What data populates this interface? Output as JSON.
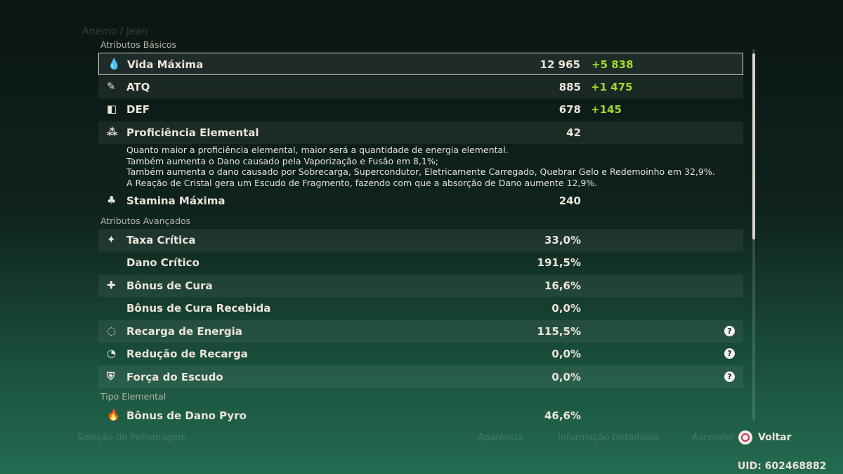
{
  "background": {
    "header": "Anemo / Jean",
    "hints": [
      "Seleção de Personagem",
      "Aparência",
      "Informação Detalhada",
      "Ascender"
    ]
  },
  "sections": [
    {
      "title": "Atributos Básicos",
      "rows": [
        {
          "name": "Vida Máxima",
          "value": "12 965",
          "bonus": "+5 838",
          "selected": true
        },
        {
          "name": "ATQ",
          "value": "885",
          "bonus": "+1 475"
        },
        {
          "name": "DEF",
          "value": "678",
          "bonus": "+145"
        },
        {
          "name": "Proficiência Elemental",
          "value": "42",
          "description": [
            "Quanto maior a proficiência elemental, maior será a quantidade de energia elemental.",
            "Também aumenta o Dano causado pela Vaporização e Fusão em 8,1%;",
            "Também aumenta o dano causado por Sobrecarga, Supercondutor, Eletricamente Carregado, Quebrar Gelo e Redemoinho em 32,9%.",
            "A Reação de Cristal gera um Escudo de Fragmento, fazendo com que a absorção de Dano aumente 12,9%."
          ]
        },
        {
          "name": "Stamina Máxima",
          "value": "240"
        }
      ]
    },
    {
      "title": "Atributos Avançados",
      "rows": [
        {
          "name": "Taxa Crítica",
          "value": "33,0%"
        },
        {
          "name": "Dano Crítico",
          "value": "191,5%"
        },
        {
          "name": "Bônus de Cura",
          "value": "16,6%"
        },
        {
          "name": "Bônus de Cura Recebida",
          "value": "0,0%"
        },
        {
          "name": "Recarga de Energia",
          "value": "115,5%",
          "help": true
        },
        {
          "name": "Redução de Recarga",
          "value": "0,0%",
          "help": true
        },
        {
          "name": "Força do Escudo",
          "value": "0,0%",
          "help": true
        }
      ]
    },
    {
      "title": "Tipo Elemental",
      "rows": [
        {
          "name": "Bônus de Dano Pyro",
          "value": "46,6%"
        }
      ]
    }
  ],
  "footer": {
    "back": "Voltar",
    "uid": "UID: 602468882"
  }
}
